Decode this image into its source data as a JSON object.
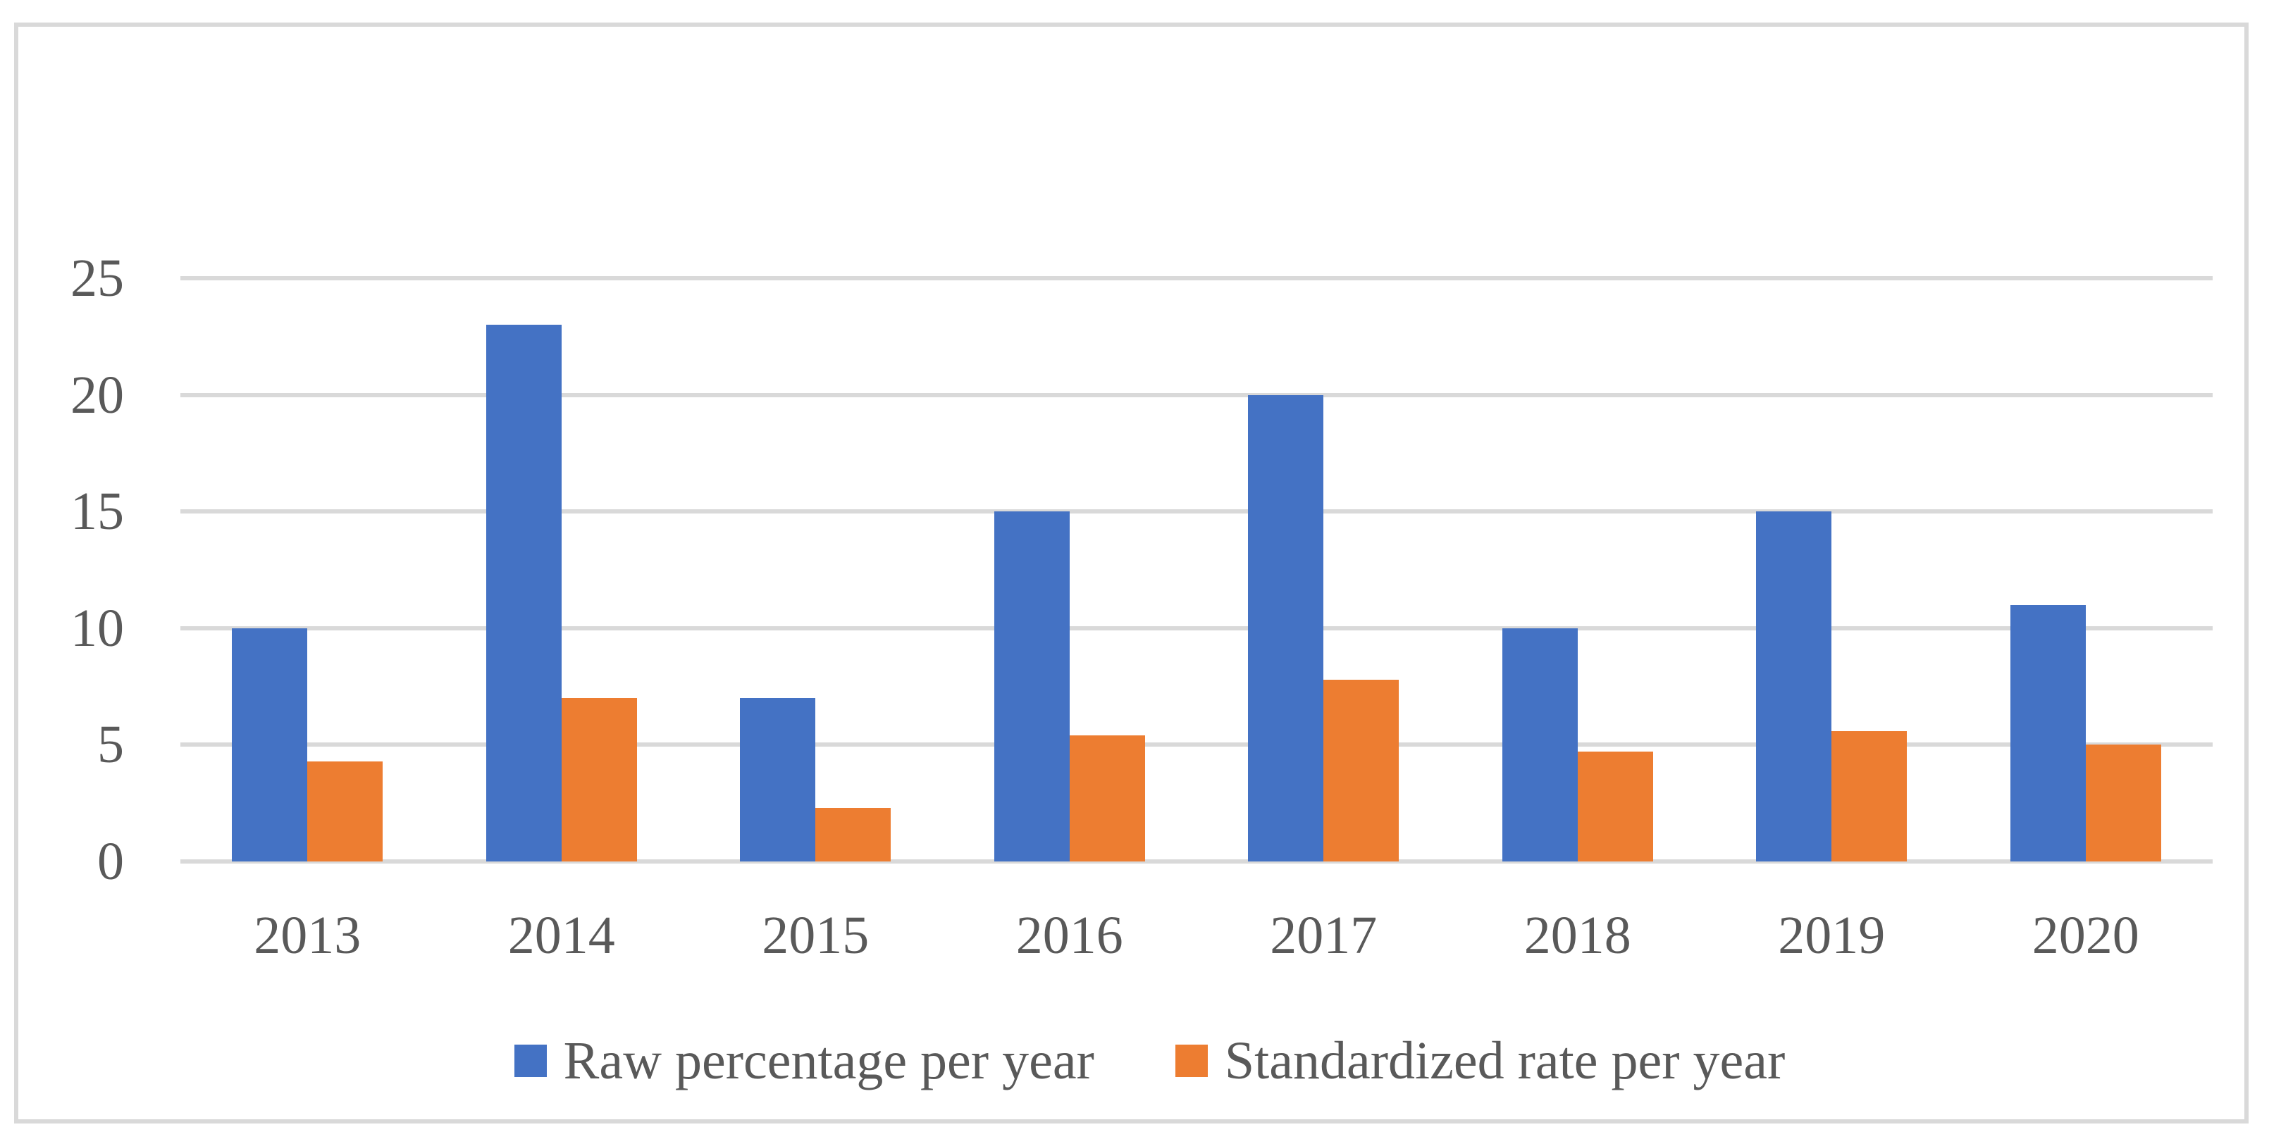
{
  "figure": {
    "background": "#ffffff",
    "frame_border_color": "#D9D9D9"
  },
  "chart_data": {
    "type": "bar",
    "title": "",
    "categories": [
      "2013",
      "2014",
      "2015",
      "2016",
      "2017",
      "2018",
      "2019",
      "2020"
    ],
    "series": [
      {
        "name": "Raw percentage per year",
        "color": "#4472C4",
        "values": [
          10,
          23,
          7,
          15,
          20,
          10,
          15,
          11
        ]
      },
      {
        "name": "Standardized rate per year",
        "color": "#ED7D31",
        "values": [
          4.3,
          7,
          2.3,
          5.4,
          7.8,
          4.7,
          5.6,
          5
        ]
      }
    ],
    "x_axis": {
      "tick_labels": [
        "2013",
        "2014",
        "2015",
        "2016",
        "2017",
        "2018",
        "2019",
        "2020"
      ]
    },
    "y_axis": {
      "min": 0,
      "max": 25,
      "step": 5,
      "tick_labels": [
        "0",
        "5",
        "10",
        "15",
        "20",
        "25"
      ]
    },
    "grid": true,
    "gridline_color": "#D9D9D9",
    "text_color": "#595959",
    "legend_position": "bottom"
  }
}
